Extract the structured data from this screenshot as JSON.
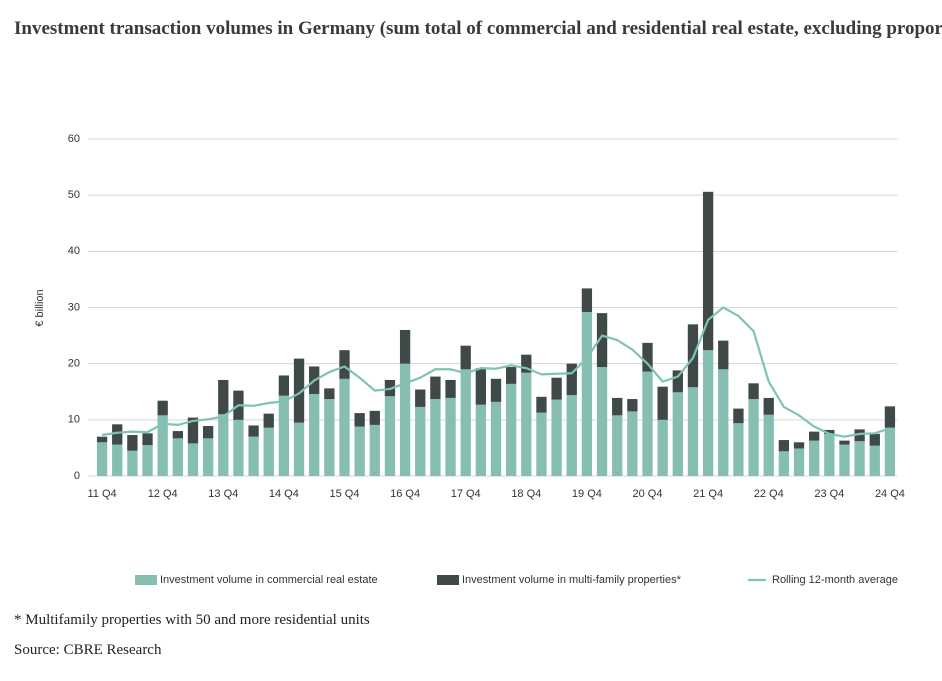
{
  "chart_data": {
    "type": "bar",
    "stacked": true,
    "title": "Investment transaction volumes in Germany (sum total of commercial and residential real estate, excluding proportion of company share takeovers)",
    "ylabel": "€ billion",
    "footnote": "* Multifamily properties with 50 and more residential units",
    "source": "Source: CBRE Research",
    "categories": [
      "11 Q4",
      null,
      null,
      null,
      "12 Q4",
      null,
      null,
      null,
      "13 Q4",
      null,
      null,
      null,
      "14 Q4",
      null,
      null,
      null,
      "15 Q4",
      null,
      null,
      null,
      "16 Q4",
      null,
      null,
      null,
      "17 Q4",
      null,
      null,
      null,
      "18 Q4",
      null,
      null,
      null,
      "19 Q4",
      null,
      null,
      null,
      "20 Q4",
      null,
      null,
      null,
      "21 Q4",
      null,
      null,
      null,
      "22 Q4",
      null,
      null,
      null,
      "23 Q4",
      null,
      null,
      null,
      "24 Q4"
    ],
    "series": [
      {
        "name": "Investment volume in commercial real estate",
        "color": "#86bfb1",
        "type": "bar",
        "values": [
          6.0,
          5.6,
          4.5,
          5.5,
          10.8,
          6.7,
          5.8,
          6.7,
          11.0,
          10.0,
          7.0,
          8.6,
          14.3,
          9.5,
          14.6,
          13.7,
          17.3,
          8.8,
          9.1,
          14.2,
          20.0,
          12.3,
          13.7,
          13.9,
          19.0,
          12.7,
          13.2,
          16.4,
          18.4,
          11.3,
          13.6,
          14.4,
          29.2,
          19.4,
          10.8,
          11.5,
          18.6,
          10.0,
          14.9,
          15.8,
          22.4,
          19.0,
          9.4,
          13.7,
          10.9,
          4.4,
          4.9,
          6.3,
          7.5,
          5.6,
          6.2,
          5.4,
          8.6
        ]
      },
      {
        "name": "Investment volume in multi-family properties*",
        "color": "#3e4948",
        "type": "bar",
        "values": [
          1.0,
          3.6,
          2.8,
          2.1,
          2.6,
          1.3,
          4.6,
          2.2,
          6.1,
          5.2,
          2.0,
          2.5,
          3.6,
          11.4,
          4.9,
          1.9,
          5.1,
          2.4,
          2.5,
          2.9,
          6.0,
          3.1,
          4.0,
          3.2,
          4.2,
          6.5,
          4.1,
          3.0,
          3.2,
          2.8,
          3.9,
          5.6,
          4.2,
          9.6,
          3.1,
          2.2,
          5.1,
          5.9,
          3.9,
          11.2,
          28.2,
          5.1,
          2.6,
          2.8,
          3.0,
          2.0,
          1.1,
          1.6,
          0.7,
          0.7,
          2.1,
          2.1,
          3.8
        ]
      },
      {
        "name": "Rolling 12-month average",
        "color": "#7fc4b3",
        "type": "line",
        "values": [
          7.3,
          7.7,
          7.9,
          7.8,
          9.3,
          9.1,
          9.8,
          10.1,
          10.6,
          12.6,
          12.5,
          13.0,
          13.3,
          14.7,
          17.0,
          18.5,
          19.5,
          17.5,
          15.2,
          15.5,
          16.5,
          17.5,
          19.0,
          19.0,
          18.3,
          19.2,
          19.1,
          19.7,
          19.2,
          18.1,
          18.2,
          18.3,
          21.0,
          25.0,
          24.2,
          22.5,
          20.0,
          16.8,
          17.7,
          21.0,
          27.8,
          30.0,
          28.5,
          25.8,
          16.8,
          12.3,
          10.8,
          8.8,
          7.5,
          7.0,
          7.5,
          7.6,
          8.5
        ]
      }
    ],
    "ylim": [
      0,
      60
    ],
    "yticks": [
      0,
      10,
      20,
      30,
      40,
      50,
      60
    ],
    "grid": true
  }
}
